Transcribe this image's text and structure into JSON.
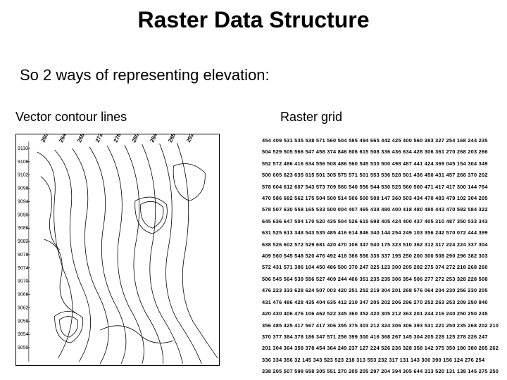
{
  "title": "Raster Data Structure",
  "subtitle": "So 2 ways of representing elevation:",
  "left_label": "Vector contour lines",
  "right_label": "Raster grid",
  "contour": {
    "stroke": "#000000",
    "stroke_width": 0.8,
    "labels_top": [
      "260",
      "264",
      "268",
      "272",
      "276",
      "280",
      "284",
      "288",
      "292"
    ],
    "axis_left": [
      "9110",
      "9106",
      "9102",
      "9098",
      "9094",
      "9090",
      "9086",
      "9082",
      "9078",
      "9074",
      "9070",
      "9066",
      "9062",
      "9058",
      "9054",
      "9050"
    ]
  },
  "raster": {
    "text_color": "#000000",
    "rows": [
      "454 409 531 535 538 571 560 504 585 494 665 442 425 400 560 383 327 254 168 244 235",
      "504 529 505 566 547 458 374 846 806 615 508 336 436 634 428 306 361 270 268 203 266",
      "552 572 486 416 634 556 508 486 560 545 530 500 498 487 441 424 369 045 154 304 349",
      "500 605 623 635 615 501 305 575 571 501 553 536 528 501 436 450 431 457 268 370 202",
      "578 604 612 607 543 573 709 560 540 556 544 530 525 560 500 471 417 417 300 144 764",
      "470 586 682 562 175 504 500 514 506 500 508 147 360 503 434 470 483 479 102 304 205",
      "578 507 630 558 165 533 500 004 407 465 438 480 400 418 480 480 443 470 592 584 322",
      "645 636 647 504 170 520 435 504 526 615 698 405 424 400 437 405 310 487 350 533 343",
      "631 525 613 348 543 535 485 416 614 846 340 144 254 249 103 356 242 570 072 444 399",
      "638 526 602 572 529 681 420 470 106 347 540 175 323 510 362 312 317 224 224 337 304",
      "409 560 545 548 520 476 492 418 386 556 336 337 195 250 200 300 508 290 296 382 303",
      "572 431 571 306 104 450 486 500 370 247 325 123 300 205 202 275 374 272 218 268 260",
      "506 545 564 539 556 527 409 244 406 351 235 235 306 354 506 277 272 253 328 228 508",
      "476 223 333 628 624 507 003 420 251 252 219 304 201 268 576 064 204 230 256 230 205",
      "431 476 486 428 435 404 635 412 210 347 205 202 206 296 270 252 263 253 209 250 840",
      "420 430 406 476 106 462 522 345 360 352 420 305 212 363 201 244 216 240 250 250 245",
      "356 485 425 417 567 417 306 355 375 303 212 324 306 306 393 531 221 250 235 268 202 210",
      "370 377 384 378 186 347 571 256 399 300 416 368 267 145 304 205 228 125 278 226 247",
      "201 304 364 358 378 454 364 249 237 127 224 526 236 328 358 142 375 350 180 380 265 262",
      "336 334 356 32 145 343 523 523 218 313 553 232 317 131 143 300 390 156 124 276 254",
      "338 205 507 598 658 305 551 270 205 205 297 204 394 305 644 313 520 131 138 145 275 250"
    ]
  }
}
